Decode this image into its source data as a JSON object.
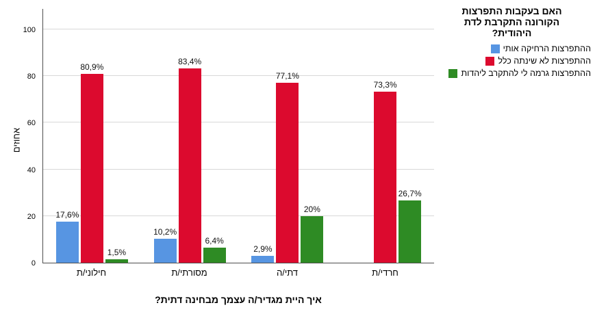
{
  "chart_data": {
    "type": "bar",
    "title": "האם בעקבות התפרצות הקורונה התקרבת לדת היהודית?",
    "xlabel": "איך היית מגדיר/ה עצמך מבחינה דתית?",
    "ylabel": "אחוזים",
    "ylim": [
      0,
      100
    ],
    "yticks": [
      0,
      20,
      40,
      60,
      80,
      100
    ],
    "grid": "horizontal",
    "legend_position": "top-right",
    "categories": [
      "חילוני/ת",
      "מסורתי/ת",
      "דתי/ה",
      "חרדי/ת"
    ],
    "series": [
      {
        "name": "ההתפרצות הרחיקה אותי",
        "color": "#5795E2",
        "values": [
          17.6,
          10.2,
          2.9,
          0
        ],
        "labels": [
          "17,6%",
          "10,2%",
          "2,9%",
          ""
        ]
      },
      {
        "name": "ההתפרצות לא שינתה כלל",
        "color": "#DC0A2E",
        "values": [
          80.9,
          83.4,
          77.1,
          73.3
        ],
        "labels": [
          "80,9%",
          "83,4%",
          "77,1%",
          "73,3%"
        ]
      },
      {
        "name": "ההתפרצות גרמה לי להתקרב ליהדות",
        "color": "#2E8B24",
        "values": [
          1.5,
          6.4,
          20,
          26.7
        ],
        "labels": [
          "1,5%",
          "6,4%",
          "20%",
          "26,7%"
        ]
      }
    ],
    "colors": {
      "gridline": "#d8d8d8",
      "axis": "#4d4d4d",
      "label_text": "#111111"
    }
  }
}
